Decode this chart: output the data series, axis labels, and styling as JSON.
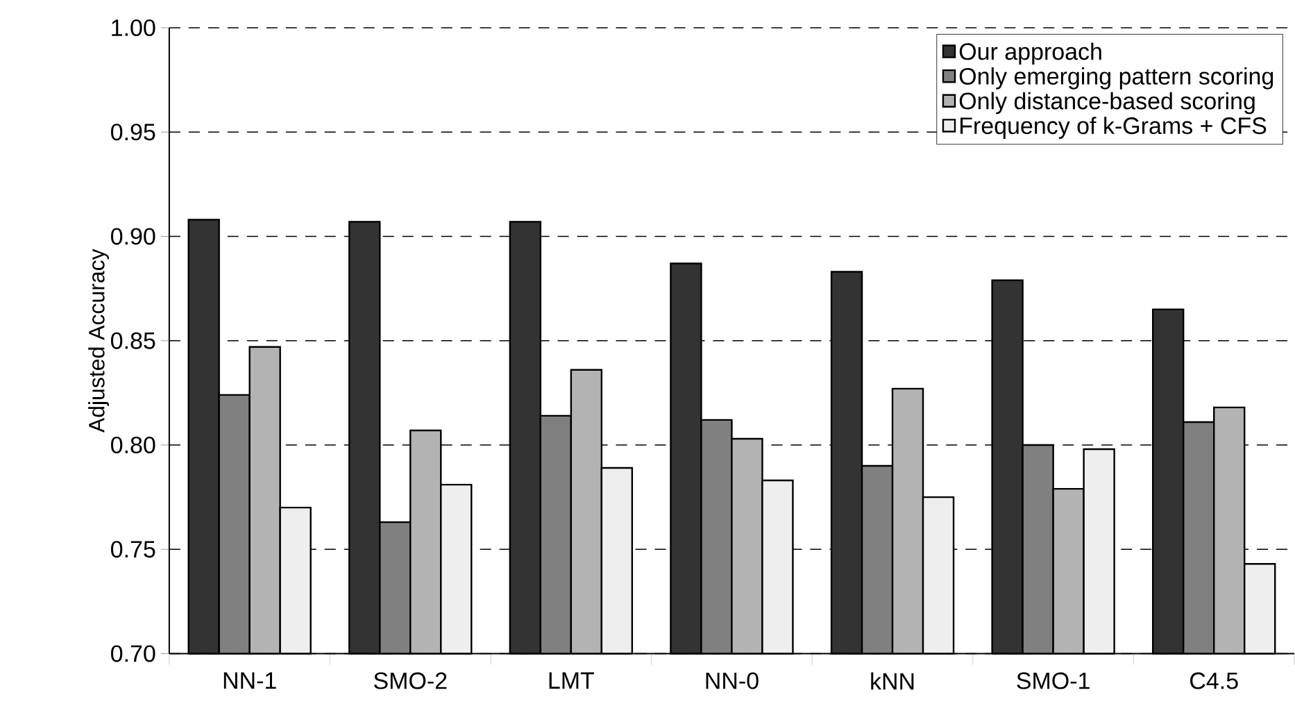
{
  "chart_data": {
    "type": "bar",
    "ylabel": "Adjusted Accuracy",
    "categories": [
      "NN-1",
      "SMO-2",
      "LMT",
      "NN-0",
      "kNN",
      "SMO-1",
      "C4.5"
    ],
    "series": [
      {
        "name": "Our approach",
        "color": "#333333",
        "values": [
          0.908,
          0.907,
          0.907,
          0.887,
          0.883,
          0.879,
          0.865
        ]
      },
      {
        "name": "Only emerging pattern scoring",
        "color": "#808080",
        "values": [
          0.824,
          0.763,
          0.814,
          0.812,
          0.79,
          0.8,
          0.811
        ]
      },
      {
        "name": "Only distance-based scoring",
        "color": "#b3b3b3",
        "values": [
          0.847,
          0.807,
          0.836,
          0.803,
          0.827,
          0.779,
          0.818
        ]
      },
      {
        "name": "Frequency of k-Grams + CFS",
        "color": "#eeeeee",
        "values": [
          0.77,
          0.781,
          0.789,
          0.783,
          0.775,
          0.798,
          0.743
        ]
      }
    ],
    "ylim": [
      0.7,
      1.0
    ],
    "yticks": [
      {
        "value": 0.7,
        "label": "0.70"
      },
      {
        "value": 0.75,
        "label": "0.75"
      },
      {
        "value": 0.8,
        "label": "0.80"
      },
      {
        "value": 0.85,
        "label": "0.85"
      },
      {
        "value": 0.9,
        "label": "0.90"
      },
      {
        "value": 0.95,
        "label": "0.95"
      },
      {
        "value": 1.0,
        "label": "1.00"
      }
    ],
    "grid": "y",
    "legend": "top right"
  }
}
